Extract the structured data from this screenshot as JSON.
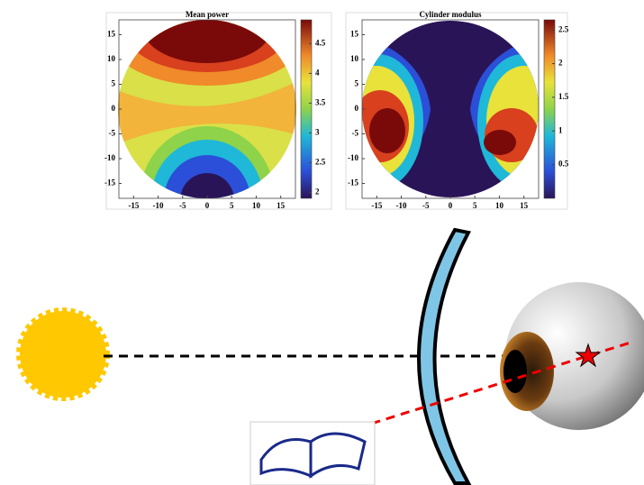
{
  "chart_data": [
    {
      "type": "contour",
      "title": "Mean power",
      "xlim": [
        -18,
        18
      ],
      "ylim": [
        -18,
        18
      ],
      "xticks": [
        -15,
        -10,
        -5,
        0,
        5,
        10,
        15
      ],
      "yticks": [
        -15,
        -10,
        -5,
        0,
        5,
        10,
        15
      ],
      "colorbar_lim": [
        1.9,
        4.9
      ],
      "colorbar_ticks": [
        2,
        2.5,
        3,
        3.5,
        4,
        4.5
      ]
    },
    {
      "type": "contour",
      "title": "Cylinder modulus",
      "xlim": [
        -18,
        18
      ],
      "ylim": [
        -18,
        18
      ],
      "xticks": [
        -15,
        -10,
        -5,
        0,
        5,
        10,
        15
      ],
      "yticks": [
        -15,
        -10,
        -5,
        0,
        5,
        10,
        15
      ],
      "colorbar_lim": [
        0,
        2.65
      ],
      "colorbar_ticks": [
        0.5,
        1,
        1.5,
        2,
        2.5
      ]
    }
  ]
}
